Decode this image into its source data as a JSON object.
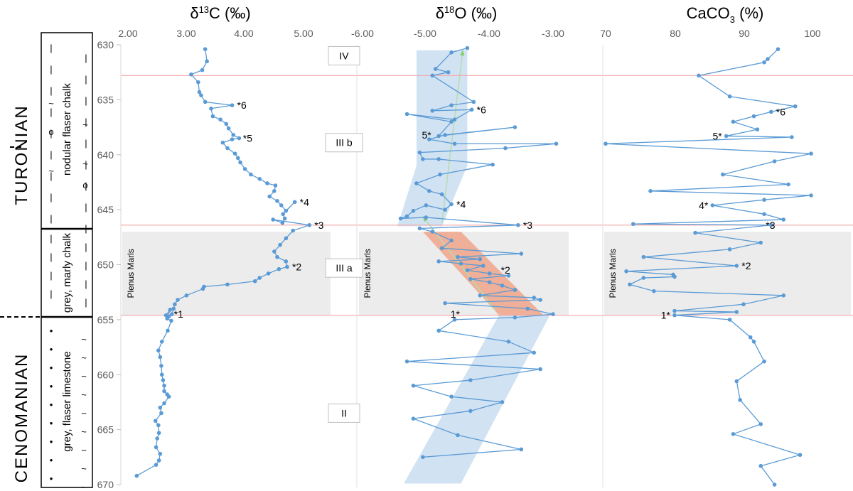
{
  "colors": {
    "series": "#5b9bd5",
    "band_blue": "#c9ddf1",
    "band_red": "#f0a58a",
    "marls_fill": "#ececec",
    "boundary_line": "#f4a7a7",
    "trend_arrow": "#7dcf6b"
  },
  "lithology": {
    "stage_upper": "TURONIAN",
    "stage_lower": "CENOMANIAN",
    "units": [
      {
        "label": "nodular flaser chalk",
        "top": 630,
        "bottom": 647
      },
      {
        "label": "grey, marly chalk",
        "top": 647,
        "bottom": 654.5
      },
      {
        "label": "grey, flaser limestone",
        "top": 654.5,
        "bottom": 670
      }
    ]
  },
  "depth_axis": {
    "min": 630,
    "max": 670,
    "ticks": [
      "630",
      "635",
      "640",
      "645",
      "650",
      "655",
      "660",
      "665",
      "670"
    ]
  },
  "horizons": {
    "boundaries": [
      632.8,
      646.4,
      654.6
    ],
    "plenus_marls_label": "Plenus Marls",
    "plenus_marls_top": 647,
    "plenus_marls_bottom": 654.6
  },
  "units_boxes": [
    {
      "label": "IV",
      "depth": 631
    },
    {
      "label": "III b",
      "depth": 638.9
    },
    {
      "label": "III a",
      "depth": 650.3
    },
    {
      "label": "II",
      "depth": 663.5
    }
  ],
  "chart_data": [
    {
      "type": "line",
      "title": "δ13C (‰)",
      "xlabel": "δ13C (‰)",
      "ylabel": "",
      "xlim": [
        2.0,
        5.5
      ],
      "x_ticks": [
        "2.00",
        "3.00",
        "4.00",
        "5.00"
      ],
      "ylim": [
        630,
        670
      ],
      "series": [
        {
          "x": [
            3.32,
            3.35,
            3.27,
            3.08,
            3.2,
            3.22,
            3.25,
            3.32,
            3.78,
            3.42,
            3.45,
            3.58,
            3.68,
            3.72,
            3.8,
            3.9,
            3.78,
            3.62,
            3.7,
            3.83,
            3.88,
            3.92,
            4.0,
            4.1,
            4.25,
            4.38,
            4.52,
            4.5,
            4.42,
            4.55,
            4.62,
            4.7,
            4.85,
            4.65,
            4.68,
            4.64,
            4.48,
            5.1,
            4.82,
            4.7,
            4.6,
            4.5,
            4.55,
            4.7,
            4.72,
            4.58,
            4.4,
            4.25,
            4.17,
            3.7,
            3.3,
            3.28,
            3.0,
            2.85,
            2.8,
            2.78,
            2.75,
            2.7,
            2.65,
            2.72,
            2.67,
            2.74,
            2.68,
            2.58,
            2.52,
            2.55,
            2.57,
            2.58,
            2.6,
            2.62,
            2.62,
            2.67,
            2.7,
            2.62,
            2.55,
            2.57,
            2.47,
            2.52,
            2.53,
            2.5,
            2.48,
            2.55,
            2.53,
            2.48,
            2.15
          ],
          "y": [
            630.4,
            631.5,
            632.3,
            632.7,
            633.4,
            634.3,
            634.6,
            635.2,
            635.5,
            635.8,
            636.5,
            636.8,
            637.2,
            637.6,
            638.2,
            638.5,
            638.6,
            638.9,
            639.4,
            639.9,
            640.3,
            640.7,
            641.3,
            641.8,
            642.2,
            642.6,
            642.8,
            643.3,
            643.8,
            644.2,
            644.6,
            645.1,
            644.3,
            645.4,
            645.8,
            646.2,
            645.9,
            646.4,
            646.9,
            647.6,
            648.2,
            648.8,
            649.3,
            649.7,
            650.2,
            650.4,
            650.8,
            651.2,
            651.5,
            651.8,
            652.0,
            652.2,
            652.8,
            653.2,
            653.6,
            654.0,
            654.5,
            654.7,
            654.6,
            654.1,
            654.9,
            655.1,
            656.0,
            657.0,
            657.8,
            658.4,
            659.2,
            660.0,
            660.5,
            661.0,
            661.5,
            661.8,
            662.0,
            662.6,
            663.0,
            663.5,
            664.2,
            664.6,
            665.3,
            665.8,
            666.6,
            667.2,
            667.8,
            668.2,
            669.2
          ]
        }
      ],
      "annotations": [
        {
          "text": "*6",
          "x": 3.78,
          "y": 635.5
        },
        {
          "text": "*5",
          "x": 3.88,
          "y": 638.5
        },
        {
          "text": "*4",
          "x": 4.85,
          "y": 644.3
        },
        {
          "text": "*3",
          "x": 5.1,
          "y": 646.4
        },
        {
          "text": "*2",
          "x": 4.72,
          "y": 650.2
        },
        {
          "text": "*1",
          "x": 2.7,
          "y": 654.5
        }
      ]
    },
    {
      "type": "line",
      "title": "δ18O (‰)",
      "xlabel": "δ18O (‰)",
      "ylabel": "",
      "xlim": [
        -6.0,
        -2.6
      ],
      "x_ticks": [
        "-6.00",
        "-5.00",
        "-4.00",
        "-3.00"
      ],
      "ylim": [
        630,
        670
      ],
      "series": [
        {
          "x": [
            -4.35,
            -4.6,
            -4.85,
            -4.65,
            -4.9,
            -4.25,
            -4.6,
            -4.9,
            -4.28,
            -4.55,
            -5.3,
            -4.6,
            -4.8,
            -3.6,
            -4.7,
            -4.95,
            -4.55,
            -2.95,
            -3.75,
            -5.1,
            -5.05,
            -4.8,
            -3.95,
            -4.78,
            -5.15,
            -4.95,
            -4.75,
            -4.6,
            -4.7,
            -5.0,
            -5.2,
            -5.3,
            -5.4,
            -5.0,
            -3.55,
            -5.1,
            -4.9,
            -4.6,
            -4.75,
            -3.5,
            -4.5,
            -4.15,
            -4.8,
            -4.45,
            -4.1,
            -4.35,
            -4.0,
            -3.7,
            -4.3,
            -4.0,
            -3.8,
            -3.6,
            -4.15,
            -3.3,
            -3.2,
            -4.7,
            -3.4,
            -3.0,
            -3.6,
            -4.55,
            -4.8,
            -3.7,
            -3.3,
            -5.3,
            -3.2,
            -4.3,
            -5.2,
            -4.6,
            -3.8,
            -4.3,
            -5.2,
            -4.5,
            -3.5,
            -5.05
          ],
          "y": [
            630.3,
            630.7,
            632.2,
            632.5,
            632.8,
            635.2,
            635.5,
            636.0,
            635.9,
            636.8,
            636.3,
            637.0,
            638.3,
            637.5,
            638.2,
            638.6,
            639.0,
            639.0,
            639.4,
            639.8,
            640.4,
            640.4,
            640.9,
            641.8,
            642.6,
            643.3,
            643.6,
            644.5,
            645.0,
            644.6,
            645.1,
            645.6,
            645.8,
            645.7,
            646.4,
            646.7,
            647.0,
            647.8,
            648.5,
            649.0,
            649.3,
            649.5,
            649.7,
            649.9,
            650.1,
            650.5,
            650.8,
            651.0,
            651.3,
            651.6,
            651.9,
            652.3,
            652.8,
            653.0,
            653.2,
            653.5,
            654.0,
            654.5,
            654.8,
            655.0,
            656.0,
            657.0,
            658.0,
            658.8,
            659.5,
            660.5,
            661.0,
            662.0,
            662.5,
            663.3,
            664.0,
            665.5,
            666.8,
            667.5
          ]
        }
      ],
      "annotations": [
        {
          "text": "*6",
          "x": -4.28,
          "y": 635.9
        },
        {
          "text": "5*",
          "x": -4.85,
          "y": 638.2
        },
        {
          "text": "*4",
          "x": -4.6,
          "y": 644.5
        },
        {
          "text": "*3",
          "x": -3.55,
          "y": 646.4
        },
        {
          "text": "*2",
          "x": -3.9,
          "y": 650.5
        },
        {
          "text": "1*",
          "x": -4.4,
          "y": 654.5
        }
      ]
    },
    {
      "type": "line",
      "title": "CaCO3 (%)",
      "xlabel": "CaCO3 (%)",
      "ylabel": "",
      "xlim": [
        70,
        100
      ],
      "x_ticks": [
        "70",
        "80",
        "90",
        "100"
      ],
      "ylim": [
        630,
        670
      ],
      "series": [
        {
          "x": [
            95.0,
            93.5,
            93.0,
            83.5,
            88.0,
            97.5,
            94.0,
            91.5,
            88.5,
            92.0,
            87.5,
            97.0,
            70.0,
            99.8,
            94.5,
            87.0,
            96.5,
            76.5,
            99.8,
            93.0,
            85.5,
            93.0,
            95.8,
            74.0,
            94.0,
            83.0,
            92.5,
            88.0,
            75.5,
            89.0,
            73.0,
            79.8,
            80.0,
            75.5,
            73.5,
            77.0,
            95.8,
            90.0,
            80.0,
            89.0,
            80.0,
            88.0,
            91.0,
            91.5,
            93.0,
            89.0,
            89.5,
            92.5,
            88.5,
            98.2,
            92.5,
            94.5
          ],
          "y": [
            630.4,
            631.3,
            631.6,
            632.8,
            634.7,
            635.6,
            636.1,
            636.5,
            637.0,
            637.7,
            638.3,
            638.4,
            639.0,
            639.9,
            640.6,
            641.8,
            642.7,
            643.3,
            643.7,
            644.1,
            644.6,
            645.4,
            645.9,
            646.3,
            646.4,
            647.1,
            648.0,
            648.6,
            649.3,
            650.1,
            650.6,
            650.9,
            651.1,
            651.2,
            651.8,
            652.4,
            652.8,
            653.6,
            654.2,
            654.3,
            654.6,
            655.0,
            656.6,
            657.0,
            658.8,
            660.6,
            662.3,
            664.5,
            665.4,
            667.3,
            668.3,
            670.0
          ]
        }
      ],
      "annotations": [
        {
          "text": "*6",
          "x": 94.0,
          "y": 636.1
        },
        {
          "text": "5*",
          "x": 87.5,
          "y": 638.3
        },
        {
          "text": "4*",
          "x": 85.5,
          "y": 644.6
        },
        {
          "text": "*3",
          "x": 92.5,
          "y": 646.4
        },
        {
          "text": "*2",
          "x": 89.0,
          "y": 650.1
        },
        {
          "text": "1*",
          "x": 80.0,
          "y": 654.6
        }
      ]
    }
  ]
}
